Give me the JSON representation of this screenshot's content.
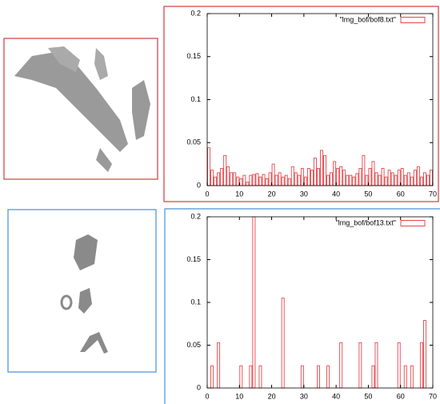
{
  "chart_data": [
    {
      "type": "histogram",
      "xlim": [
        0,
        70
      ],
      "ylim": [
        0,
        0.2
      ],
      "xticks": [
        0,
        10,
        20,
        30,
        40,
        50,
        60,
        70
      ],
      "yticks": [
        0,
        0.05,
        0.1,
        0.15,
        0.2
      ],
      "bins": [
        0,
        1,
        2,
        3,
        4,
        5,
        6,
        7,
        8,
        9,
        10,
        11,
        12,
        13,
        14,
        15,
        16,
        17,
        18,
        19,
        20,
        21,
        22,
        23,
        24,
        25,
        26,
        27,
        28,
        29,
        30,
        31,
        32,
        33,
        34,
        35,
        36,
        37,
        38,
        39,
        40,
        41,
        42,
        43,
        44,
        45,
        46,
        47,
        48,
        49,
        50,
        51,
        52,
        53,
        54,
        55,
        56,
        57,
        58,
        59,
        60,
        61,
        62,
        63,
        64,
        65,
        66,
        67,
        68,
        69,
        70
      ],
      "series": [
        {
          "name": "\"lmg_bof/bof8.txt\"",
          "color": "#e8454a",
          "values": [
            0.044,
            0.018,
            0.01,
            0.015,
            0.02,
            0.035,
            0.022,
            0.015,
            0.015,
            0.01,
            0.008,
            0.012,
            0.004,
            0.012,
            0.013,
            0.014,
            0.01,
            0.013,
            0.008,
            0.015,
            0.025,
            0.012,
            0.015,
            0.01,
            0.012,
            0.008,
            0.022,
            0.015,
            0.012,
            0.02,
            0.01,
            0.02,
            0.018,
            0.032,
            0.02,
            0.041,
            0.035,
            0.012,
            0.015,
            0.028,
            0.02,
            0.022,
            0.018,
            0.012,
            0.012,
            0.01,
            0.014,
            0.02,
            0.035,
            0.012,
            0.02,
            0.028,
            0.015,
            0.012,
            0.02,
            0.01,
            0.018,
            0.015,
            0.012,
            0.018,
            0.02,
            0.012,
            0.015,
            0.01,
            0.018,
            0.022,
            0.01,
            0.015,
            0.012,
            0.018
          ]
        }
      ],
      "legend": "upper right"
    },
    {
      "type": "histogram",
      "xlim": [
        0,
        70
      ],
      "ylim": [
        0,
        0.2
      ],
      "xticks": [
        0,
        10,
        20,
        30,
        40,
        50,
        60,
        70
      ],
      "yticks": [
        0,
        0.05,
        0.1,
        0.15,
        0.2
      ],
      "bins": [
        0,
        1,
        2,
        3,
        4,
        5,
        6,
        7,
        8,
        9,
        10,
        11,
        12,
        13,
        14,
        15,
        16,
        17,
        18,
        19,
        20,
        21,
        22,
        23,
        24,
        25,
        26,
        27,
        28,
        29,
        30,
        31,
        32,
        33,
        34,
        35,
        36,
        37,
        38,
        39,
        40,
        41,
        42,
        43,
        44,
        45,
        46,
        47,
        48,
        49,
        50,
        51,
        52,
        53,
        54,
        55,
        56,
        57,
        58,
        59,
        60,
        61,
        62,
        63,
        64,
        65,
        66,
        67,
        68,
        69,
        70
      ],
      "series": [
        {
          "name": "\"lmg_bof/bof13.txt\"",
          "color": "#e8454a",
          "values": [
            0,
            0.026,
            0,
            0.053,
            0,
            0,
            0,
            0,
            0,
            0,
            0.026,
            0,
            0,
            0.026,
            0.2,
            0,
            0.026,
            0,
            0,
            0,
            0,
            0,
            0,
            0.105,
            0,
            0,
            0,
            0,
            0,
            0.026,
            0,
            0,
            0,
            0,
            0.026,
            0,
            0,
            0.026,
            0,
            0,
            0,
            0.053,
            0,
            0,
            0,
            0,
            0,
            0.053,
            0,
            0,
            0,
            0.026,
            0.053,
            0,
            0,
            0,
            0,
            0,
            0,
            0.053,
            0,
            0.026,
            0,
            0.026,
            0,
            0,
            0.053,
            0.079,
            0,
            0
          ]
        }
      ],
      "legend": "upper right"
    }
  ]
}
